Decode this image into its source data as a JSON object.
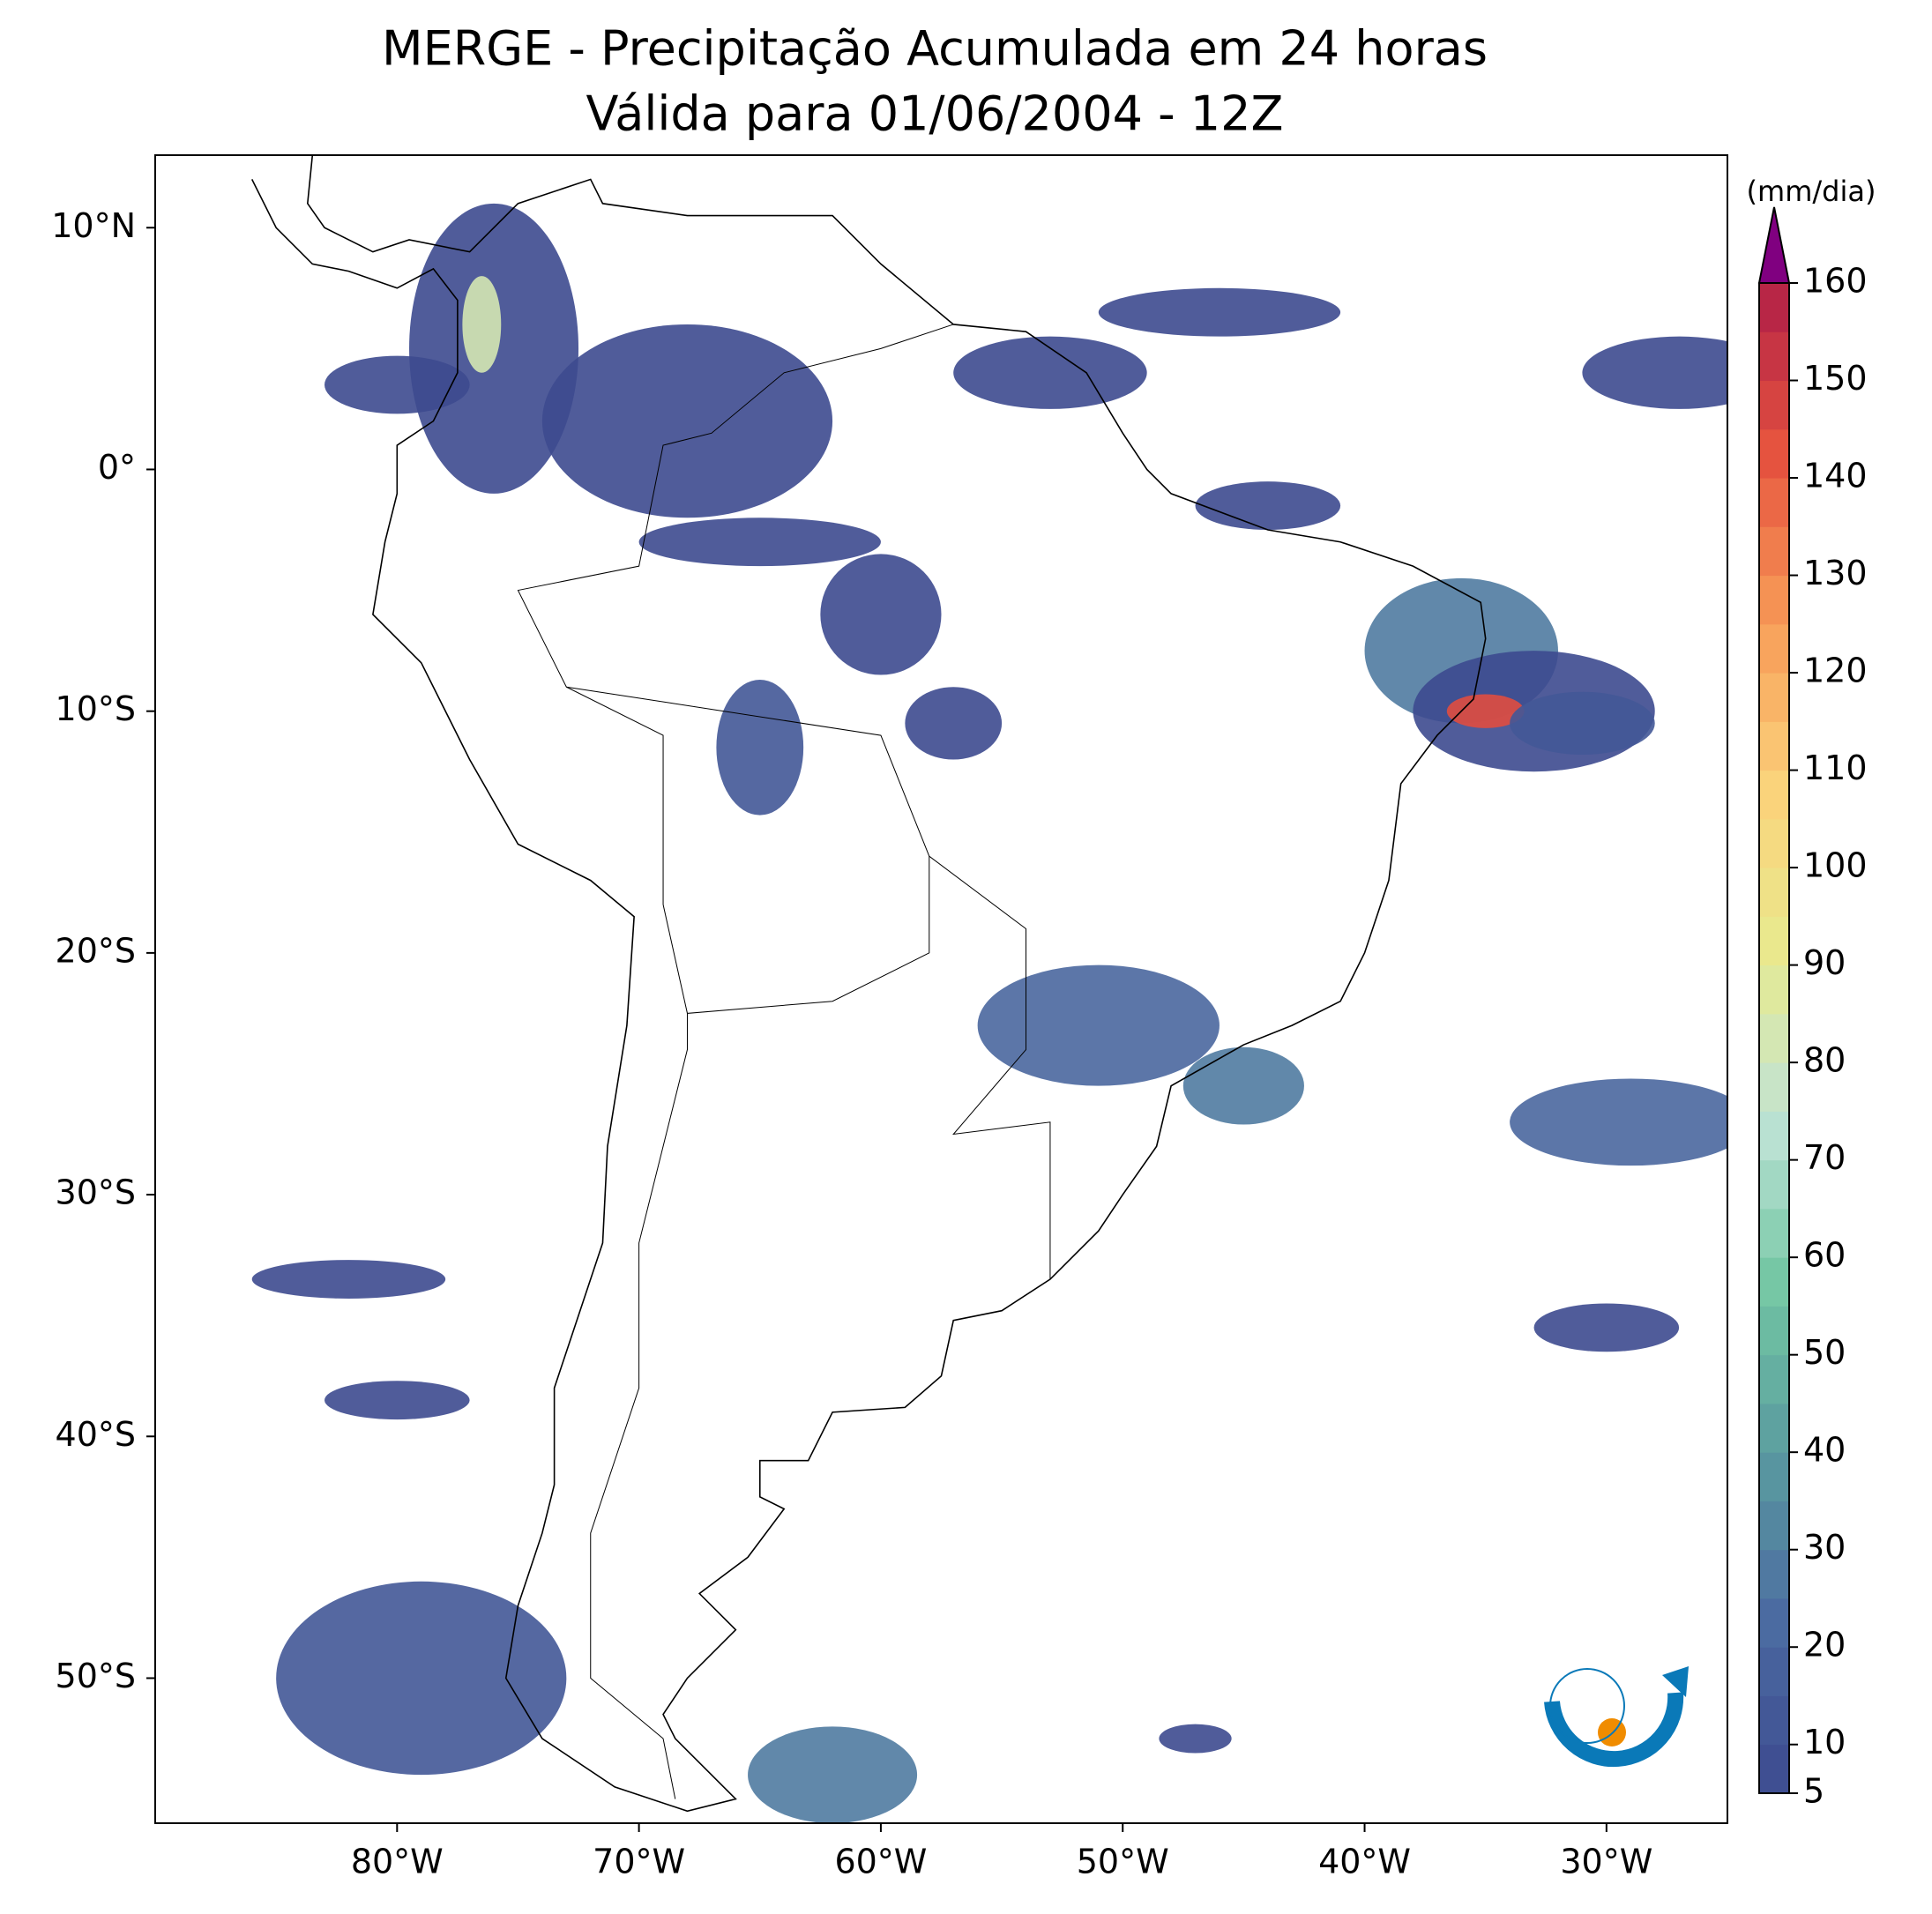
{
  "title": "MERGE - Precipitação Acumulada em 24 horas",
  "subtitle": "Válida para 01/06/2004 - 12Z",
  "map": {
    "xlim": [
      -90,
      -25
    ],
    "ylim": [
      -56,
      13
    ],
    "xticks": [
      {
        "value": -80,
        "label": "80°W"
      },
      {
        "value": -70,
        "label": "70°W"
      },
      {
        "value": -60,
        "label": "60°W"
      },
      {
        "value": -50,
        "label": "50°W"
      },
      {
        "value": -40,
        "label": "40°W"
      },
      {
        "value": -30,
        "label": "30°W"
      }
    ],
    "yticks": [
      {
        "value": 10,
        "label": "10°N"
      },
      {
        "value": 0,
        "label": "0°"
      },
      {
        "value": -10,
        "label": "10°S"
      },
      {
        "value": -20,
        "label": "20°S"
      },
      {
        "value": -30,
        "label": "30°S"
      },
      {
        "value": -40,
        "label": "40°S"
      },
      {
        "value": -50,
        "label": "50°S"
      }
    ]
  },
  "colorbar": {
    "label": "(mm/dia)",
    "lim": [
      5,
      160
    ],
    "ticks": [
      5,
      10,
      20,
      30,
      40,
      50,
      60,
      70,
      80,
      90,
      100,
      110,
      120,
      130,
      140,
      150,
      160
    ],
    "colors": [
      "#3d4a8f",
      "#4b6aa1",
      "#5a9aa0",
      "#72c6a2",
      "#bfe3d6",
      "#e8ea8f",
      "#fbd27a",
      "#f79a57",
      "#e5523f",
      "#b01f47"
    ],
    "extend_color": "#800080"
  }
}
